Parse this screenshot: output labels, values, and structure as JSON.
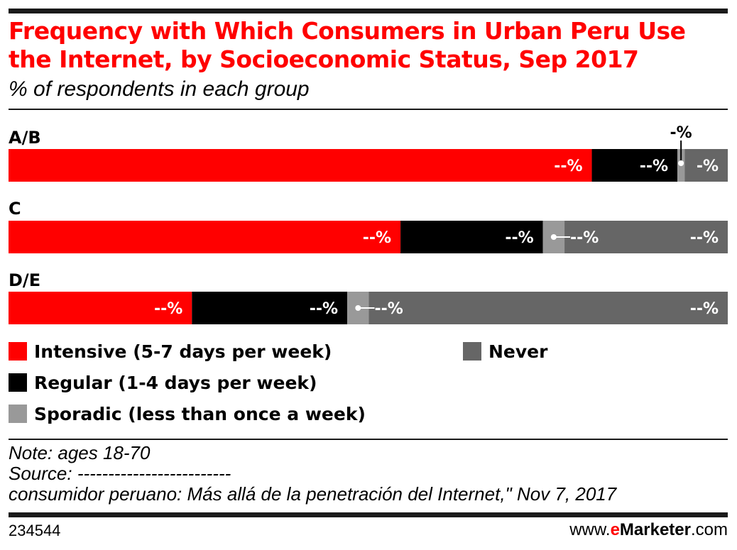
{
  "header": {
    "title": "Frequency with Which Consumers in Urban Peru Use the Internet, by Socioeconomic Status, Sep 2017",
    "subtitle": "% of respondents in each group"
  },
  "colors": {
    "intensive": "#ff0000",
    "regular": "#000000",
    "sporadic": "#999999",
    "never": "#666666",
    "title": "#ff0000"
  },
  "chart_data": {
    "type": "bar",
    "orientation": "horizontal",
    "stacked": true,
    "percent_total": 100,
    "categories": [
      "A/B",
      "C",
      "D/E"
    ],
    "series": [
      {
        "name": "Intensive (5-7 days per week)",
        "color": "#ff0000",
        "values": [
          81.1,
          54.5,
          25.5
        ],
        "labels": [
          "--%",
          "--%",
          "--%"
        ]
      },
      {
        "name": "Regular (1-4 days per week)",
        "color": "#000000",
        "values": [
          11.9,
          19.8,
          21.6
        ],
        "labels": [
          "--%",
          "--%",
          "--%"
        ]
      },
      {
        "name": "Sporadic (less than once a week)",
        "color": "#999999",
        "values": [
          1.0,
          3.0,
          3.0
        ],
        "labels": [
          "-%",
          "--%",
          "--%"
        ]
      },
      {
        "name": "Never",
        "color": "#666666",
        "values": [
          6.0,
          22.7,
          49.9
        ],
        "labels": [
          "-%",
          "--%",
          "--%"
        ]
      }
    ],
    "legend_position": "bottom",
    "grid": false
  },
  "legend": [
    {
      "label": "Intensive (5-7 days per week)",
      "color": "#ff0000"
    },
    {
      "label": "Regular (1-4 days per week)",
      "color": "#000000"
    },
    {
      "label": "Sporadic (less than once a week)",
      "color": "#999999"
    },
    {
      "label": "Never",
      "color": "#666666"
    }
  ],
  "notes": {
    "note": "Note: ages 18-70",
    "source": "Source: -------------------------",
    "source_detail": "consumidor peruano: Más allá de la penetración del Internet,\" Nov 7, 2017"
  },
  "footer": {
    "chart_id": "234544",
    "brand_prefix": "www.",
    "brand_e": "e",
    "brand_name": "Marketer",
    "brand_suffix": ".com"
  }
}
